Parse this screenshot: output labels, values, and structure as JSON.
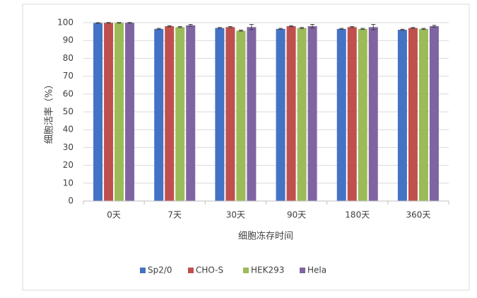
{
  "chart_data": {
    "type": "bar",
    "y_label": "细胞活率（%）",
    "x_label": "细胞冻存时间",
    "categories": [
      "0天",
      "7天",
      "30天",
      "90天",
      "180天",
      "360天"
    ],
    "series": [
      {
        "name": "Sp2/0",
        "color": "#4472c4",
        "values": [
          99.8,
          96.5,
          97,
          96.5,
          96.5,
          96
        ],
        "errors": [
          0.2,
          0.3,
          0.3,
          0.3,
          0.3,
          0.3
        ]
      },
      {
        "name": "CHO-S",
        "color": "#c0504d",
        "values": [
          99.9,
          98,
          97.5,
          98,
          97.5,
          97
        ],
        "errors": [
          0.2,
          0.3,
          0.3,
          0.3,
          0.3,
          0.3
        ]
      },
      {
        "name": "HEK293",
        "color": "#9bbb59",
        "values": [
          99.9,
          97.5,
          95.5,
          97,
          96.5,
          96.5
        ],
        "errors": [
          0.2,
          0.3,
          0.3,
          0.3,
          0.3,
          0.3
        ]
      },
      {
        "name": "Hela",
        "color": "#8064a2",
        "values": [
          99.9,
          98.5,
          97.5,
          98,
          97.5,
          98
        ],
        "errors": [
          0.2,
          0.5,
          1.5,
          1,
          1.5,
          0.5
        ]
      }
    ],
    "ylim": [
      0,
      100
    ],
    "yticks": [
      0,
      10,
      20,
      30,
      40,
      50,
      60,
      70,
      80,
      90,
      100
    ],
    "grid": true
  }
}
